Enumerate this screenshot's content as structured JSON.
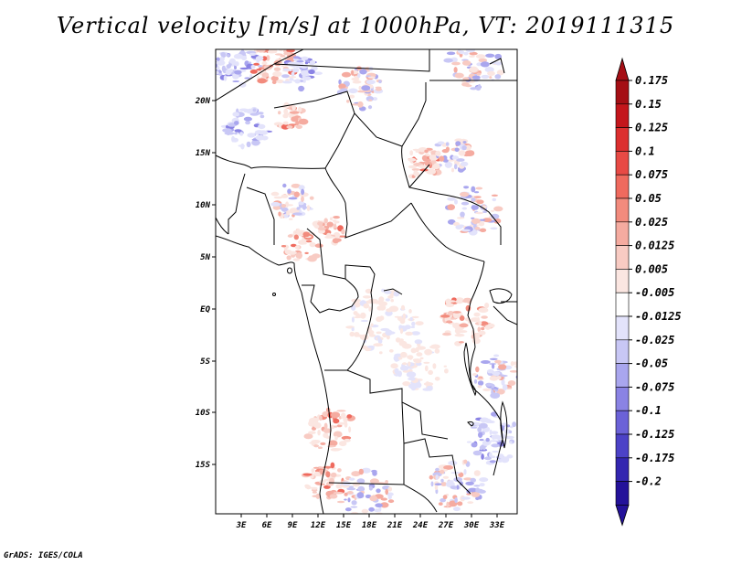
{
  "title": "Vertical velocity [m/s] at 1000hPa, VT: 2019111315",
  "credit": "GrADS: IGES/COLA",
  "map": {
    "region": "Central Africa",
    "lon_labels": [
      "3E",
      "6E",
      "9E",
      "12E",
      "15E",
      "18E",
      "21E",
      "24E",
      "27E",
      "30E",
      "33E"
    ],
    "lat_labels": [
      "20N",
      "15N",
      "10N",
      "5N",
      "EQ",
      "5S",
      "10S",
      "15S"
    ],
    "land_color": "#ffffff",
    "ocean_color": "#ffffff",
    "border_color": "#000000"
  },
  "colorbar": {
    "labels": [
      "0.175",
      "0.15",
      "0.125",
      "0.1",
      "0.075",
      "0.05",
      "0.025",
      "0.0125",
      "0.005",
      "-0.005",
      "-0.0125",
      "-0.025",
      "-0.05",
      "-0.075",
      "-0.1",
      "-0.125",
      "-0.175",
      "-0.2"
    ],
    "colors": [
      "#a50f15",
      "#c4161c",
      "#dc2f2f",
      "#e84a45",
      "#ef6a5e",
      "#f28b7d",
      "#f5aba0",
      "#f8cbc3",
      "#fbe6e1",
      "#ffffff",
      "#e3e3fb",
      "#c8c7f5",
      "#a9a6ee",
      "#8a83e4",
      "#6b62d8",
      "#4c42c7",
      "#3326b0",
      "#24129a"
    ],
    "top_arrow_color": "#a50f15",
    "bottom_arrow_color": "#24129a"
  }
}
